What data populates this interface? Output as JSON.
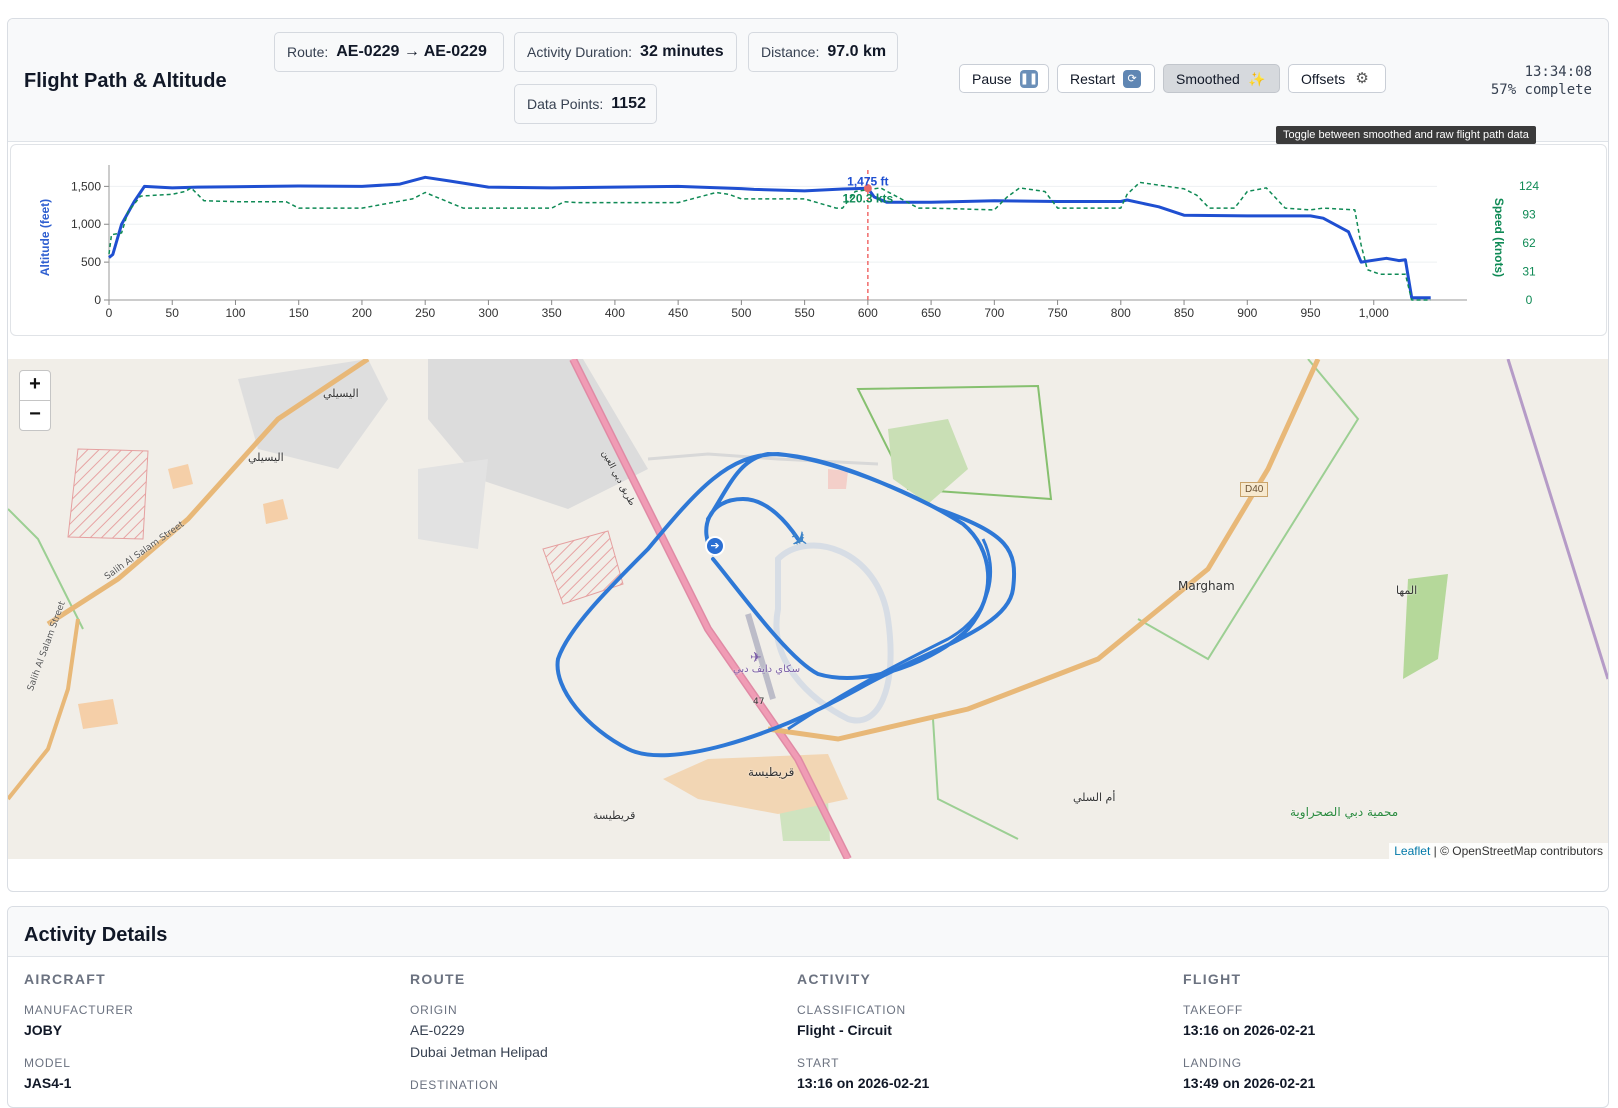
{
  "header": {
    "title": "Flight Path & Altitude",
    "stats": {
      "route_label": "Route:",
      "route_value": "AE-0229 → AE-0229",
      "duration_label": "Activity Duration:",
      "duration_value": "32 minutes",
      "distance_label": "Distance:",
      "distance_value": "97.0 km",
      "points_label": "Data Points:",
      "points_value": "1152"
    },
    "buttons": {
      "pause": "Pause",
      "pause_icon": "pause-icon",
      "restart": "Restart",
      "restart_icon": "restart-icon",
      "smoothed": "Smoothed",
      "smoothed_icon": "sparkles-icon",
      "offsets": "Offsets",
      "offsets_icon": "gear-icon"
    },
    "clock": "13:34:08",
    "progress": "57% complete",
    "progress_fraction": 0.57,
    "tooltip": "Toggle between smoothed and raw flight path data"
  },
  "chart_data": {
    "type": "line",
    "xlabel": "",
    "ylabel": "Altitude (feet)",
    "y2label": "Speed (knots)",
    "xlim": [
      0,
      1050
    ],
    "ylim": [
      0,
      1650
    ],
    "y2lim": [
      0,
      136
    ],
    "x_ticks": [
      0,
      50,
      100,
      150,
      200,
      250,
      300,
      350,
      400,
      450,
      500,
      550,
      600,
      650,
      700,
      750,
      800,
      850,
      900,
      950,
      1000
    ],
    "x_tick_labels": [
      "0",
      "50",
      "100",
      "150",
      "200",
      "250",
      "300",
      "350",
      "400",
      "450",
      "500",
      "550",
      "600",
      "650",
      "700",
      "750",
      "800",
      "850",
      "900",
      "950",
      "1,000"
    ],
    "y_ticks": [
      0,
      500,
      1000,
      1500
    ],
    "y_tick_labels": [
      "0",
      "500",
      "1,000",
      "1,500"
    ],
    "y2_ticks": [
      0,
      31,
      62,
      93,
      124
    ],
    "y2_tick_labels": [
      "0",
      "31",
      "62",
      "93",
      "124"
    ],
    "cursor_x": 600,
    "cursor_altitude_label": "1,475 ft",
    "cursor_speed_label": "120.3 kts",
    "grid": true,
    "series": [
      {
        "name": "Altitude (feet)",
        "color": "#1f4fd1",
        "style": "solid",
        "axis": "left",
        "x": [
          0,
          3,
          10,
          20,
          28,
          50,
          70,
          100,
          150,
          200,
          230,
          250,
          270,
          300,
          350,
          400,
          450,
          500,
          510,
          550,
          580,
          600,
          605,
          615,
          650,
          700,
          750,
          800,
          805,
          830,
          850,
          900,
          950,
          960,
          980,
          990,
          1010,
          1020,
          1025,
          1030,
          1045
        ],
        "values": [
          560,
          600,
          1000,
          1300,
          1500,
          1480,
          1490,
          1495,
          1505,
          1500,
          1530,
          1620,
          1570,
          1490,
          1480,
          1490,
          1500,
          1470,
          1460,
          1440,
          1465,
          1475,
          1360,
          1290,
          1290,
          1310,
          1300,
          1300,
          1320,
          1230,
          1120,
          1110,
          1110,
          1080,
          900,
          500,
          550,
          520,
          530,
          30,
          30
        ]
      },
      {
        "name": "Speed (knots)",
        "color": "#0f8a55",
        "style": "dashed",
        "axis": "right",
        "x": [
          0,
          2,
          10,
          15,
          25,
          50,
          60,
          65,
          75,
          100,
          140,
          150,
          180,
          200,
          240,
          250,
          280,
          300,
          350,
          360,
          370,
          400,
          450,
          480,
          490,
          500,
          510,
          550,
          575,
          580,
          590,
          600,
          610,
          640,
          650,
          700,
          710,
          720,
          740,
          750,
          800,
          805,
          815,
          850,
          860,
          870,
          880,
          890,
          900,
          915,
          930,
          950,
          960,
          985,
          990,
          995,
          1005,
          1025,
          1030,
          1045
        ],
        "values": [
          50,
          71,
          73,
          96,
          113,
          115,
          118,
          122,
          108,
          107,
          107,
          100,
          100,
          100,
          110,
          117,
          100,
          100,
          100,
          107,
          106,
          106,
          106,
          117,
          115,
          110,
          110,
          110,
          100,
          100,
          118,
          120,
          122,
          100,
          100,
          98,
          112,
          122,
          118,
          100,
          100,
          115,
          128,
          121,
          114,
          100,
          100,
          100,
          118,
          122,
          100,
          98,
          100,
          98,
          60,
          33,
          28,
          28,
          0,
          0
        ]
      }
    ]
  },
  "map": {
    "zoom_in": "+",
    "zoom_out": "−",
    "labels": [
      "اليسيلي",
      "اليسيلي",
      "Salih Al Salam Street",
      "Salih Al Salam Street",
      "طريق دبي العين",
      "D40",
      "Margham",
      "المها",
      "سكاي دايف دبي",
      "قريطيسة",
      "قريطيسة",
      "أم السلي",
      "محمية دبي الصحراوية",
      "47"
    ],
    "attribution_leaflet": "Leaflet",
    "attribution_rest": " | © OpenStreetMap contributors",
    "start_marker_icon": "start-pin-icon",
    "aircraft_icon": "aircraft-icon",
    "airstrip_icon": "airfield-icon"
  },
  "details": {
    "title": "Activity Details",
    "aircraft": {
      "heading": "AIRCRAFT",
      "manufacturer_label": "MANUFACTURER",
      "manufacturer": "JOBY",
      "model_label": "MODEL",
      "model": "JAS4-1"
    },
    "route": {
      "heading": "ROUTE",
      "origin_label": "ORIGIN",
      "origin": "AE-0229",
      "origin_name": "Dubai Jetman Helipad",
      "destination_label": "DESTINATION"
    },
    "activity": {
      "heading": "ACTIVITY",
      "classification_label": "CLASSIFICATION",
      "classification": "Flight - Circuit",
      "start_label": "START",
      "start": "13:16 on 2026-02-21"
    },
    "flight": {
      "heading": "FLIGHT",
      "takeoff_label": "TAKEOFF",
      "takeoff": "13:16 on 2026-02-21",
      "landing_label": "LANDING",
      "landing": "13:49 on 2026-02-21"
    }
  }
}
